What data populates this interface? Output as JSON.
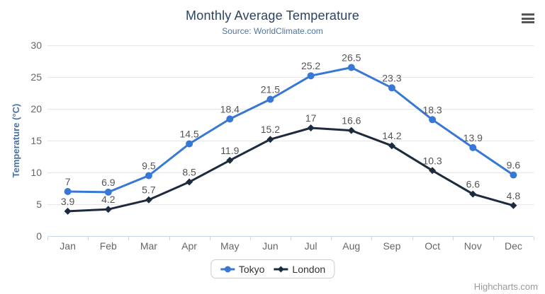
{
  "chart_data": {
    "type": "line",
    "title": "Monthly Average Temperature",
    "subtitle": "Source: WorldClimate.com",
    "categories": [
      "Jan",
      "Feb",
      "Mar",
      "Apr",
      "May",
      "Jun",
      "Jul",
      "Aug",
      "Sep",
      "Oct",
      "Nov",
      "Dec"
    ],
    "series": [
      {
        "name": "Tokyo",
        "color": "#3778d7",
        "marker": "circle",
        "values": [
          7,
          6.9,
          9.5,
          14.5,
          18.4,
          21.5,
          25.2,
          26.5,
          23.3,
          18.3,
          13.9,
          9.6
        ]
      },
      {
        "name": "London",
        "color": "#1c2b3e",
        "marker": "diamond",
        "values": [
          3.9,
          4.2,
          5.7,
          8.5,
          11.9,
          15.2,
          17,
          16.6,
          14.2,
          10.3,
          6.6,
          4.8
        ]
      }
    ],
    "xlabel": "",
    "ylabel": "Temperature (°C)",
    "ylim": [
      0,
      30
    ],
    "yticks": [
      0,
      5,
      10,
      15,
      20,
      25,
      30
    ],
    "grid": true,
    "legend_position": "bottom",
    "data_labels": true,
    "colors": {
      "grid": "#e6e6e6",
      "axis_line": "#ccd6eb",
      "tick_labels": "#666666",
      "axis_title": "#4a72a4",
      "data_labels": "#555555"
    }
  },
  "credits": {
    "label": "Highcharts.com"
  }
}
